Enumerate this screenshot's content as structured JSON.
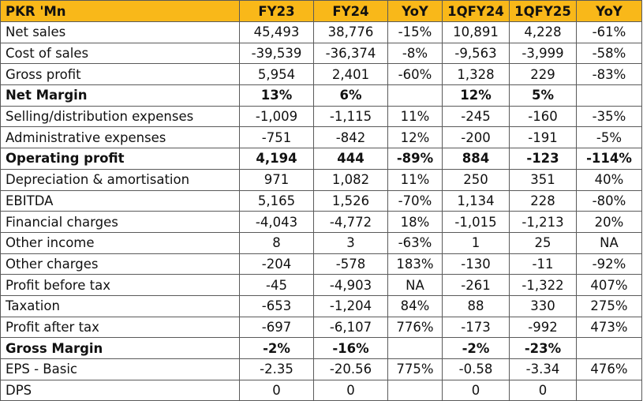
{
  "table": {
    "columns": [
      "PKR 'Mn",
      "FY23",
      "FY24",
      "YoY",
      "1QFY24",
      "1QFY25",
      "YoY"
    ],
    "rows": [
      {
        "label": "Net sales",
        "bold": false,
        "values": [
          "45,493",
          "38,776",
          "-15%",
          "10,891",
          "4,228",
          "-61%"
        ]
      },
      {
        "label": "Cost of sales",
        "bold": false,
        "values": [
          "-39,539",
          "-36,374",
          "-8%",
          "-9,563",
          "-3,999",
          "-58%"
        ]
      },
      {
        "label": "Gross profit",
        "bold": false,
        "values": [
          "5,954",
          "2,401",
          "-60%",
          "1,328",
          "229",
          "-83%"
        ]
      },
      {
        "label": "Net Margin",
        "bold": true,
        "values": [
          "13%",
          "6%",
          "",
          "12%",
          "5%",
          ""
        ]
      },
      {
        "label": "Selling/distribution expenses",
        "bold": false,
        "values": [
          "-1,009",
          "-1,115",
          "11%",
          "-245",
          "-160",
          "-35%"
        ]
      },
      {
        "label": "Administrative expenses",
        "bold": false,
        "values": [
          "-751",
          "-842",
          "12%",
          "-200",
          "-191",
          "-5%"
        ]
      },
      {
        "label": "Operating profit",
        "bold": true,
        "values": [
          "4,194",
          "444",
          "-89%",
          "884",
          "-123",
          "-114%"
        ]
      },
      {
        "label": "Depreciation & amortisation",
        "bold": false,
        "values": [
          "971",
          "1,082",
          "11%",
          "250",
          "351",
          "40%"
        ]
      },
      {
        "label": "EBITDA",
        "bold": false,
        "values": [
          "5,165",
          "1,526",
          "-70%",
          "1,134",
          "228",
          "-80%"
        ]
      },
      {
        "label": "Financial charges",
        "bold": false,
        "values": [
          "-4,043",
          "-4,772",
          "18%",
          "-1,015",
          "-1,213",
          "20%"
        ]
      },
      {
        "label": "Other income",
        "bold": false,
        "values": [
          "8",
          "3",
          "-63%",
          "1",
          "25",
          "NA"
        ]
      },
      {
        "label": "Other charges",
        "bold": false,
        "values": [
          "-204",
          "-578",
          "183%",
          "-130",
          "-11",
          "-92%"
        ]
      },
      {
        "label": "Profit before tax",
        "bold": false,
        "values": [
          "-45",
          "-4,903",
          "NA",
          "-261",
          "-1,322",
          "407%"
        ]
      },
      {
        "label": "Taxation",
        "bold": false,
        "values": [
          "-653",
          "-1,204",
          "84%",
          "88",
          "330",
          "275%"
        ]
      },
      {
        "label": "Profit after tax",
        "bold": false,
        "values": [
          "-697",
          "-6,107",
          "776%",
          "-173",
          "-992",
          "473%"
        ]
      },
      {
        "label": "Gross Margin",
        "bold": true,
        "values": [
          "-2%",
          "-16%",
          "",
          "-2%",
          "-23%",
          ""
        ]
      },
      {
        "label": "EPS - Basic",
        "bold": false,
        "values": [
          "-2.35",
          "-20.56",
          "775%",
          "-0.58",
          "-3.34",
          "476%"
        ]
      },
      {
        "label": "DPS",
        "bold": false,
        "values": [
          "0",
          "0",
          "",
          "0",
          "0",
          ""
        ]
      }
    ]
  },
  "colors": {
    "header_bg": "#f9b819",
    "border": "#5a5a5a",
    "text": "#111111"
  }
}
